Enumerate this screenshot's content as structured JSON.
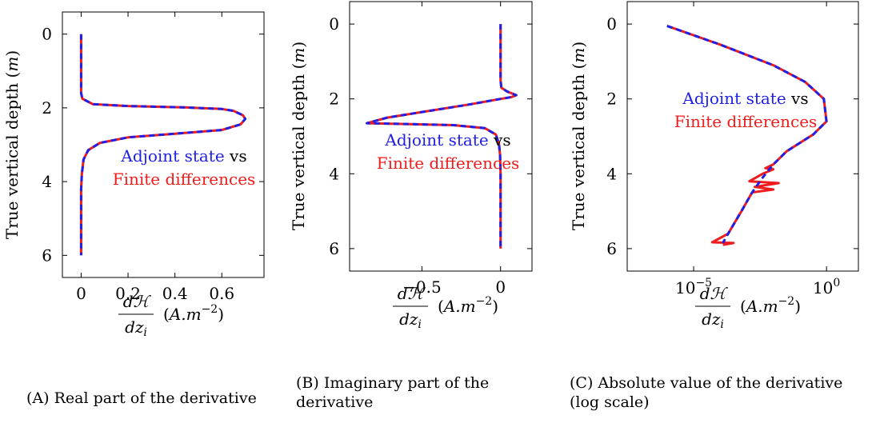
{
  "colors": {
    "adjoint": "#1f1fe6",
    "finite": "#ee1c1c",
    "text": "#000000"
  },
  "legend": {
    "adjoint": "Adjoint state",
    "vs": "vs",
    "finite": "Finite differences"
  },
  "x_unit": "(A.m⁻²)",
  "chart_data": [
    {
      "id": "real",
      "type": "line",
      "caption_tag": "(A)",
      "caption": "Real part of the derivative",
      "xlabel": "dH/dz_i (A.m^-2)",
      "ylabel": "True vertical depth (m)",
      "xlim": [
        -0.08,
        0.78
      ],
      "ylim": [
        -0.6,
        6.6
      ],
      "y_inverted": true,
      "xscale": "linear",
      "x_ticks": [
        0,
        0.2,
        0.4,
        0.6
      ],
      "x_tick_labels": [
        "0",
        "0.2",
        "0.4",
        "0.6"
      ],
      "y_ticks": [
        0,
        2,
        4,
        6
      ],
      "y_tick_labels": [
        "0",
        "2",
        "4",
        "6"
      ],
      "series": [
        {
          "name": "Adjoint state",
          "points": [
            [
              0,
              0.0
            ],
            [
              0,
              0.5
            ],
            [
              0,
              1.0
            ],
            [
              0,
              1.4
            ],
            [
              0,
              1.6
            ],
            [
              0.005,
              1.75
            ],
            [
              0.05,
              1.9
            ],
            [
              0.2,
              1.95
            ],
            [
              0.45,
              1.99
            ],
            [
              0.6,
              2.03
            ],
            [
              0.65,
              2.08
            ],
            [
              0.69,
              2.2
            ],
            [
              0.7,
              2.3
            ],
            [
              0.68,
              2.45
            ],
            [
              0.6,
              2.6
            ],
            [
              0.4,
              2.7
            ],
            [
              0.2,
              2.8
            ],
            [
              0.08,
              2.95
            ],
            [
              0.03,
              3.15
            ],
            [
              0.01,
              3.4
            ],
            [
              0.003,
              3.8
            ],
            [
              0,
              4.2
            ],
            [
              0,
              5.0
            ],
            [
              0,
              5.5
            ],
            [
              0,
              6.0
            ]
          ]
        },
        {
          "name": "Finite differences",
          "points": [
            [
              0,
              0.0
            ],
            [
              0,
              0.5
            ],
            [
              0,
              1.0
            ],
            [
              0,
              1.4
            ],
            [
              0,
              1.6
            ],
            [
              0.005,
              1.75
            ],
            [
              0.05,
              1.9
            ],
            [
              0.2,
              1.95
            ],
            [
              0.45,
              1.99
            ],
            [
              0.6,
              2.03
            ],
            [
              0.65,
              2.08
            ],
            [
              0.69,
              2.2
            ],
            [
              0.7,
              2.3
            ],
            [
              0.68,
              2.45
            ],
            [
              0.6,
              2.6
            ],
            [
              0.4,
              2.7
            ],
            [
              0.2,
              2.8
            ],
            [
              0.08,
              2.95
            ],
            [
              0.03,
              3.15
            ],
            [
              0.01,
              3.4
            ],
            [
              0.003,
              3.8
            ],
            [
              0,
              4.2
            ],
            [
              0,
              5.0
            ],
            [
              0,
              5.5
            ],
            [
              0,
              6.0
            ]
          ]
        }
      ]
    },
    {
      "id": "imag",
      "type": "line",
      "caption_tag": "(B)",
      "caption": "Imaginary part of the derivative",
      "xlabel": "dH/dz_i (A.m^-2)",
      "ylabel": "True vertical depth (m)",
      "xlim": [
        -0.96,
        0.2
      ],
      "ylim": [
        -0.6,
        6.6
      ],
      "y_inverted": true,
      "xscale": "linear",
      "x_ticks": [
        -0.5,
        0
      ],
      "x_tick_labels": [
        "−0.5",
        "0"
      ],
      "y_ticks": [
        0,
        2,
        4,
        6
      ],
      "y_tick_labels": [
        "0",
        "2",
        "4",
        "6"
      ],
      "series": [
        {
          "name": "Adjoint state",
          "points": [
            [
              0,
              0.0
            ],
            [
              0,
              0.5
            ],
            [
              0,
              1.0
            ],
            [
              0,
              1.5
            ],
            [
              0.005,
              1.7
            ],
            [
              0.04,
              1.8
            ],
            [
              0.1,
              1.9
            ],
            [
              0.07,
              1.95
            ],
            [
              0.0,
              2.0
            ],
            [
              -0.2,
              2.15
            ],
            [
              -0.5,
              2.35
            ],
            [
              -0.72,
              2.5
            ],
            [
              -0.85,
              2.65
            ],
            [
              -0.6,
              2.67
            ],
            [
              -0.3,
              2.7
            ],
            [
              -0.1,
              2.78
            ],
            [
              -0.03,
              2.95
            ],
            [
              -0.01,
              3.2
            ],
            [
              -0.003,
              3.5
            ],
            [
              0,
              4.0
            ],
            [
              0,
              5.0
            ],
            [
              0,
              6.0
            ]
          ]
        },
        {
          "name": "Finite differences",
          "points": [
            [
              0,
              0.0
            ],
            [
              0,
              0.5
            ],
            [
              0,
              1.0
            ],
            [
              0,
              1.5
            ],
            [
              0.005,
              1.7
            ],
            [
              0.04,
              1.8
            ],
            [
              0.1,
              1.9
            ],
            [
              0.07,
              1.95
            ],
            [
              0.0,
              2.0
            ],
            [
              -0.2,
              2.15
            ],
            [
              -0.5,
              2.35
            ],
            [
              -0.72,
              2.5
            ],
            [
              -0.85,
              2.65
            ],
            [
              -0.6,
              2.67
            ],
            [
              -0.3,
              2.7
            ],
            [
              -0.1,
              2.78
            ],
            [
              -0.03,
              2.95
            ],
            [
              -0.01,
              3.2
            ],
            [
              -0.003,
              3.5
            ],
            [
              0,
              4.0
            ],
            [
              0,
              5.0
            ],
            [
              0,
              6.0
            ]
          ]
        }
      ]
    },
    {
      "id": "abs",
      "type": "line",
      "caption_tag": "(C)",
      "caption": "Absolute value of the derivative (log scale)",
      "xlabel": "dH/dz_i (A.m^-2)",
      "ylabel": "True vertical depth (m)",
      "xlim": [
        -7.5,
        1.2
      ],
      "ylim": [
        -0.6,
        6.6
      ],
      "y_inverted": true,
      "xscale": "log10",
      "x_ticks": [
        -5,
        0
      ],
      "x_tick_labels": [
        "10⁻⁵",
        "10⁰"
      ],
      "y_ticks": [
        0,
        2,
        4,
        6
      ],
      "y_tick_labels": [
        "0",
        "2",
        "4",
        "6"
      ],
      "series": [
        {
          "name": "Adjoint state",
          "points": [
            [
              -6.0,
              0.05
            ],
            [
              -4.0,
              0.55
            ],
            [
              -2.0,
              1.1
            ],
            [
              -0.8,
              1.55
            ],
            [
              -0.1,
              2.0
            ],
            [
              0.0,
              2.6
            ],
            [
              -0.5,
              2.95
            ],
            [
              -1.5,
              3.4
            ],
            [
              -2.0,
              3.75
            ],
            [
              -2.4,
              4.1
            ],
            [
              -2.8,
              4.5
            ],
            [
              -3.2,
              5.0
            ],
            [
              -3.7,
              5.6
            ],
            [
              -3.9,
              5.85
            ]
          ]
        },
        {
          "name": "Finite differences",
          "points": [
            [
              -6.0,
              0.05
            ],
            [
              -4.0,
              0.55
            ],
            [
              -2.0,
              1.1
            ],
            [
              -0.8,
              1.55
            ],
            [
              -0.1,
              2.0
            ],
            [
              0.0,
              2.6
            ],
            [
              -0.5,
              2.95
            ],
            [
              -1.5,
              3.4
            ],
            [
              -2.0,
              3.75
            ],
            [
              -2.3,
              3.85
            ],
            [
              -2.0,
              3.88
            ],
            [
              -2.4,
              4.0
            ],
            [
              -2.9,
              4.2
            ],
            [
              -1.8,
              4.25
            ],
            [
              -2.7,
              4.35
            ],
            [
              -2.0,
              4.42
            ],
            [
              -2.8,
              4.5
            ],
            [
              -3.2,
              5.0
            ],
            [
              -3.7,
              5.6
            ],
            [
              -4.3,
              5.83
            ],
            [
              -3.5,
              5.85
            ],
            [
              -3.9,
              5.9
            ]
          ]
        }
      ]
    }
  ]
}
